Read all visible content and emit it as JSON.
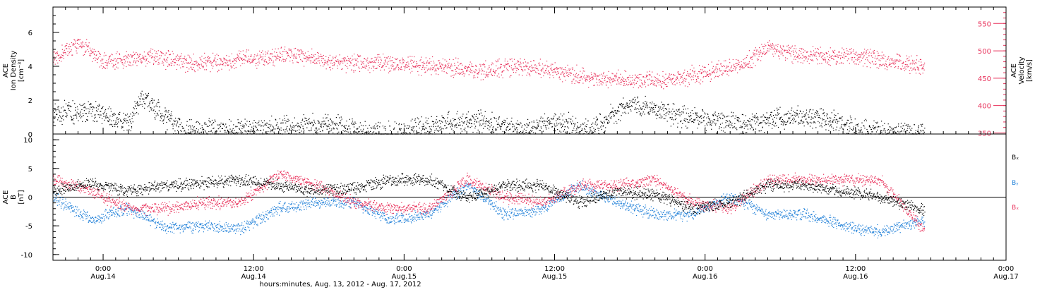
{
  "colors": {
    "density": "#000000",
    "velocity": "#e8305a",
    "bx": "#000000",
    "by": "#1e7fd8",
    "bz": "#e8305a",
    "axis": "#000000",
    "background": "#ffffff"
  },
  "chart_data": [
    {
      "type": "scatter",
      "panel": "top",
      "ylabel_lines": [
        "ACE",
        "Ion Density",
        "[cm⁻³]"
      ],
      "y2label_lines": [
        "ACE",
        "Velocity",
        "[km/s]"
      ],
      "xlim": [
        "2012-08-13T20:00",
        "2012-08-17T00:00"
      ],
      "ylim": [
        0,
        7.5
      ],
      "y_ticks": [
        0,
        2,
        4,
        6
      ],
      "y2lim": [
        348,
        580
      ],
      "y2_ticks": [
        350,
        400,
        450,
        500,
        550
      ],
      "series": [
        {
          "key": "density",
          "axis": "left",
          "color": "#000000",
          "x": [
            "2012-08-13T20:00",
            "2012-08-13T23:00",
            "2012-08-14T02:00",
            "2012-08-14T03:00",
            "2012-08-14T06:00",
            "2012-08-14T09:00",
            "2012-08-14T12:00",
            "2012-08-14T15:00",
            "2012-08-14T18:00",
            "2012-08-14T21:00",
            "2012-08-15T00:00",
            "2012-08-15T03:00",
            "2012-08-15T06:00",
            "2012-08-15T09:00",
            "2012-08-15T12:00",
            "2012-08-15T15:00",
            "2012-08-15T18:00",
            "2012-08-15T21:00",
            "2012-08-16T00:00",
            "2012-08-16T03:00",
            "2012-08-16T06:00",
            "2012-08-16T09:00",
            "2012-08-16T12:00",
            "2012-08-16T15:00",
            "2012-08-16T17:30"
          ],
          "y": [
            1.2,
            1.4,
            0.6,
            2.2,
            0.3,
            0.2,
            0.3,
            0.4,
            0.6,
            0.1,
            0.05,
            0.6,
            0.8,
            0.2,
            0.7,
            0.3,
            1.8,
            1.2,
            0.8,
            0.6,
            1.0,
            1.0,
            0.3,
            0.1,
            0.1
          ]
        },
        {
          "key": "velocity",
          "axis": "right",
          "color": "#e8305a",
          "x": [
            "2012-08-13T20:00",
            "2012-08-13T22:00",
            "2012-08-14T00:00",
            "2012-08-14T02:00",
            "2012-08-14T04:00",
            "2012-08-14T06:00",
            "2012-08-14T09:00",
            "2012-08-14T12:00",
            "2012-08-14T15:00",
            "2012-08-14T18:00",
            "2012-08-14T21:00",
            "2012-08-15T00:00",
            "2012-08-15T03:00",
            "2012-08-15T06:00",
            "2012-08-15T09:00",
            "2012-08-15T12:00",
            "2012-08-15T15:00",
            "2012-08-15T18:00",
            "2012-08-15T21:00",
            "2012-08-16T00:00",
            "2012-08-16T03:00",
            "2012-08-16T05:00",
            "2012-08-16T07:00",
            "2012-08-16T09:00",
            "2012-08-16T12:00",
            "2012-08-16T15:00",
            "2012-08-16T17:30"
          ],
          "y": [
            485,
            515,
            480,
            485,
            490,
            478,
            478,
            485,
            495,
            480,
            478,
            475,
            470,
            465,
            472,
            462,
            450,
            445,
            445,
            460,
            475,
            505,
            495,
            490,
            490,
            480,
            472
          ]
        }
      ]
    },
    {
      "type": "scatter",
      "panel": "bottom",
      "ylabel_lines": [
        "ACE",
        "B",
        "[nT]"
      ],
      "xlim": [
        "2012-08-13T20:00",
        "2012-08-17T00:00"
      ],
      "ylim": [
        -11,
        11
      ],
      "y_ticks": [
        -10,
        -5,
        0,
        5,
        10
      ],
      "zero_line": true,
      "legend_position": "right",
      "series": [
        {
          "key": "bx",
          "name": "Bₓ",
          "color": "#000000",
          "x": [
            "2012-08-13T20:00",
            "2012-08-13T23:00",
            "2012-08-14T02:00",
            "2012-08-14T05:00",
            "2012-08-14T08:00",
            "2012-08-14T11:00",
            "2012-08-14T14:00",
            "2012-08-14T17:00",
            "2012-08-14T20:00",
            "2012-08-14T23:00",
            "2012-08-15T02:00",
            "2012-08-15T05:00",
            "2012-08-15T08:00",
            "2012-08-15T11:00",
            "2012-08-15T14:00",
            "2012-08-15T17:00",
            "2012-08-15T20:00",
            "2012-08-15T23:00",
            "2012-08-16T02:00",
            "2012-08-16T05:00",
            "2012-08-16T08:00",
            "2012-08-16T11:00",
            "2012-08-16T14:00",
            "2012-08-16T17:30"
          ],
          "y": [
            1.0,
            2.5,
            1.0,
            2.0,
            2.5,
            3.0,
            2.0,
            1.0,
            1.5,
            3.0,
            3.0,
            0.0,
            2.0,
            2.0,
            -1.0,
            1.0,
            0.5,
            -2.0,
            -1.0,
            2.0,
            2.0,
            1.0,
            0.0,
            -2.5
          ]
        },
        {
          "key": "by",
          "name": "Bᵧ",
          "color": "#1e7fd8",
          "x": [
            "2012-08-13T20:00",
            "2012-08-13T23:00",
            "2012-08-14T02:00",
            "2012-08-14T05:00",
            "2012-08-14T08:00",
            "2012-08-14T11:00",
            "2012-08-14T14:00",
            "2012-08-14T17:00",
            "2012-08-14T20:00",
            "2012-08-14T23:00",
            "2012-08-15T02:00",
            "2012-08-15T05:00",
            "2012-08-15T08:00",
            "2012-08-15T11:00",
            "2012-08-15T14:00",
            "2012-08-15T17:00",
            "2012-08-15T20:00",
            "2012-08-15T23:00",
            "2012-08-16T02:00",
            "2012-08-16T05:00",
            "2012-08-16T08:00",
            "2012-08-16T11:00",
            "2012-08-16T14:00",
            "2012-08-16T17:30"
          ],
          "y": [
            0.0,
            -4.0,
            -2.0,
            -5.5,
            -5.0,
            -5.5,
            -2.0,
            -1.0,
            -1.0,
            -4.0,
            -3.0,
            2.0,
            -3.0,
            -2.0,
            2.0,
            -1.0,
            -3.0,
            -3.0,
            0.0,
            -3.0,
            -3.0,
            -5.0,
            -6.0,
            -4.0
          ]
        },
        {
          "key": "bz",
          "name": "Bₓ",
          "color": "#e8305a",
          "x": [
            "2012-08-13T20:00",
            "2012-08-13T23:00",
            "2012-08-14T02:00",
            "2012-08-14T05:00",
            "2012-08-14T08:00",
            "2012-08-14T11:00",
            "2012-08-14T14:00",
            "2012-08-14T17:00",
            "2012-08-14T20:00",
            "2012-08-14T23:00",
            "2012-08-15T02:00",
            "2012-08-15T05:00",
            "2012-08-15T08:00",
            "2012-08-15T11:00",
            "2012-08-15T14:00",
            "2012-08-15T17:00",
            "2012-08-15T20:00",
            "2012-08-15T23:00",
            "2012-08-16T02:00",
            "2012-08-16T05:00",
            "2012-08-16T08:00",
            "2012-08-16T11:00",
            "2012-08-16T14:00",
            "2012-08-16T17:30"
          ],
          "y": [
            3.0,
            1.0,
            -2.0,
            -2.0,
            -1.0,
            -1.0,
            4.0,
            2.0,
            -1.0,
            -2.0,
            -2.0,
            3.0,
            0.0,
            -1.0,
            2.0,
            2.0,
            3.0,
            -1.0,
            -2.0,
            3.0,
            3.0,
            3.0,
            3.0,
            -6.0
          ]
        }
      ]
    }
  ],
  "x_axis": {
    "ticks": [
      {
        "time": "0:00",
        "date": "Aug.14"
      },
      {
        "time": "12:00",
        "date": "Aug.14"
      },
      {
        "time": "0:00",
        "date": "Aug.15"
      },
      {
        "time": "12:00",
        "date": "Aug.15"
      },
      {
        "time": "0:00",
        "date": "Aug.16"
      },
      {
        "time": "12:00",
        "date": "Aug.16"
      },
      {
        "time": "0:00",
        "date": "Aug.17"
      }
    ],
    "label": "hours:minutes, Aug. 13, 2012 - Aug. 17, 2012"
  }
}
